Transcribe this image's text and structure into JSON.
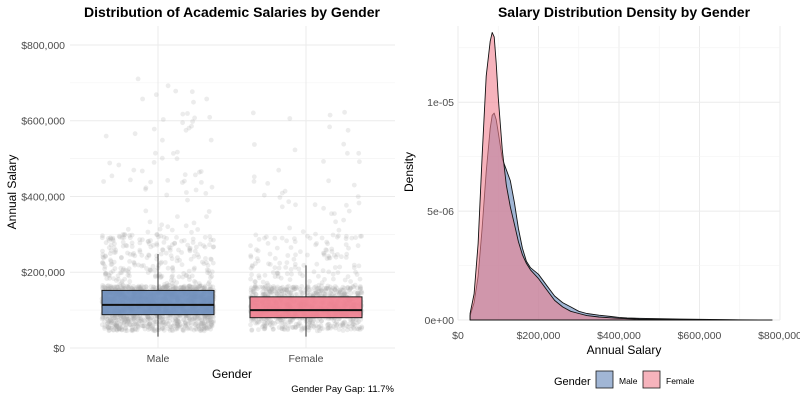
{
  "colors": {
    "male_fill": "#6F8FBE",
    "female_fill": "#F08090",
    "point": "#A9A9A9",
    "outline": "#1a1a1a"
  },
  "chart_data": [
    {
      "type": "box",
      "title": "Distribution of Academic Salaries by Gender",
      "xlabel": "Gender",
      "ylabel": "Annual Salary",
      "ylim": [
        0,
        850000
      ],
      "yticks": [
        0,
        200000,
        400000,
        600000,
        800000
      ],
      "ytick_labels": [
        "$0",
        "$200,000",
        "$400,000",
        "$600,000",
        "$800,000"
      ],
      "grid": true,
      "categories": [
        "Male",
        "Female"
      ],
      "boxes": [
        {
          "name": "Male",
          "whisker_low": 30000,
          "q1": 88000,
          "median": 114000,
          "q3": 152000,
          "whisker_high": 248000
        },
        {
          "name": "Female",
          "whisker_low": 30000,
          "q1": 80000,
          "median": 100000,
          "q3": 135000,
          "whisker_high": 218000
        }
      ],
      "jitter_points": true,
      "caption": "Gender Pay Gap: 11.7%"
    },
    {
      "type": "area",
      "title": "Salary Distribution Density by Gender",
      "xlabel": "Annual Salary",
      "ylabel": "Density",
      "xlim": [
        0,
        800000
      ],
      "ylim": [
        0,
        1.35e-05
      ],
      "xticks": [
        0,
        200000,
        400000,
        600000,
        800000
      ],
      "xtick_labels": [
        "$0",
        "$200,000",
        "$400,000",
        "$600,000",
        "$800,000"
      ],
      "yticks": [
        0,
        5e-06,
        1e-05
      ],
      "ytick_labels": [
        "0e+00",
        "5e-06",
        "1e-05"
      ],
      "grid": true,
      "legend": {
        "title": "Gender",
        "position": "bottom",
        "entries": [
          "Male",
          "Female"
        ]
      },
      "x": [
        30000,
        40000,
        50000,
        60000,
        70000,
        80000,
        85000,
        90000,
        95000,
        100000,
        110000,
        120000,
        130000,
        140000,
        150000,
        160000,
        170000,
        180000,
        200000,
        220000,
        240000,
        260000,
        280000,
        300000,
        320000,
        350000,
        380000,
        400000,
        420000,
        450000,
        500000,
        550000,
        600000,
        650000,
        700000,
        750000,
        780000
      ],
      "series": [
        {
          "name": "Male",
          "values": [
            2e-07,
            8e-07,
            2e-06,
            4.2e-06,
            6.8e-06,
            8.8e-06,
            9.4e-06,
            9.5e-06,
            9.2e-06,
            8.6e-06,
            7.4e-06,
            6.9e-06,
            6.4e-06,
            5.4e-06,
            4.2e-06,
            3.3e-06,
            2.7e-06,
            2.4e-06,
            2.1e-06,
            1.6e-06,
            1.1e-06,
            8e-07,
            6e-07,
            4e-07,
            3e-07,
            2.2e-07,
            1.6e-07,
            1.2e-07,
            9e-08,
            8e-08,
            6e-08,
            4e-08,
            3e-08,
            2e-08,
            1e-08,
            5e-09,
            3e-09
          ]
        },
        {
          "name": "Female",
          "values": [
            3e-07,
            1.2e-06,
            3.5e-06,
            7.5e-06,
            1.12e-05,
            1.28e-05,
            1.32e-05,
            1.3e-05,
            1.18e-05,
            1.02e-05,
            7.8e-06,
            6.2e-06,
            5.2e-06,
            4.4e-06,
            3.6e-06,
            3e-06,
            2.6e-06,
            2.3e-06,
            1.9e-06,
            1.4e-06,
            9e-07,
            6e-07,
            4e-07,
            3e-07,
            2e-07,
            1.4e-07,
            1e-07,
            8e-08,
            6e-08,
            4e-08,
            3e-08,
            2e-08,
            1.5e-08,
            1e-08,
            5e-09,
            3e-09,
            2e-09
          ]
        }
      ]
    }
  ]
}
